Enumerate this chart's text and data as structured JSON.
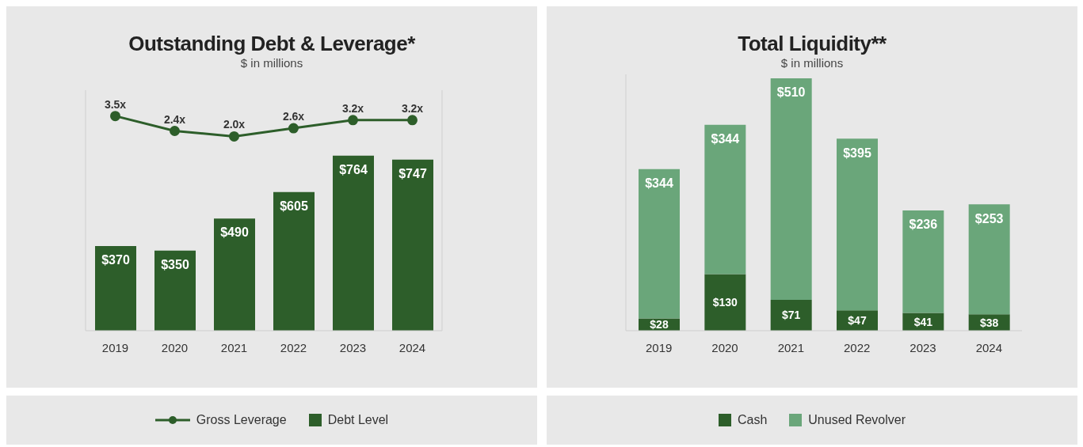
{
  "chart_data": [
    {
      "type": "bar",
      "title": "Outstanding Debt & Leverage*",
      "subtitle": "$ in millions",
      "categories": [
        "2019",
        "2020",
        "2021",
        "2022",
        "2023",
        "2024"
      ],
      "series": [
        {
          "name": "Gross Leverage",
          "type": "line",
          "axis": "y2",
          "color": "#2d5e2a",
          "values": [
            3.5,
            2.4,
            2.0,
            2.6,
            3.2,
            3.2
          ],
          "value_labels": [
            "3.5x",
            "2.4x",
            "2.0x",
            "2.6x",
            "3.2x",
            "3.2x"
          ]
        },
        {
          "name": "Debt Level",
          "color": "#2d5e2a",
          "values": [
            370,
            350,
            490,
            605,
            764,
            747
          ],
          "value_labels": [
            "$370",
            "$350",
            "$490",
            "$605",
            "$764",
            "$747"
          ]
        }
      ],
      "ylim": [
        0,
        1050
      ],
      "y2lim": [
        -12.3,
        5.4
      ],
      "tick_labels": "x",
      "marker": "circle",
      "legend": "bottom",
      "grid": false
    },
    {
      "type": "bar",
      "title": "Total Liquidity**",
      "subtitle": "$ in millions",
      "categories": [
        "2019",
        "2020",
        "2021",
        "2022",
        "2023",
        "2024"
      ],
      "stacked": true,
      "series": [
        {
          "name": "Cash",
          "color": "#2d5e2a",
          "values": [
            28,
            130,
            71,
            47,
            41,
            38
          ],
          "value_labels": [
            "$28",
            "$130",
            "$71",
            "$47",
            "$41",
            "$38"
          ]
        },
        {
          "name": "Unused Revolver",
          "color": "#6aa67a",
          "values": [
            344,
            344,
            510,
            395,
            236,
            253
          ],
          "value_labels": [
            "$344",
            "$344",
            "$510",
            "$395",
            "$236",
            "$253"
          ]
        }
      ],
      "ylim": [
        0,
        590
      ],
      "tick_labels": "x",
      "legend": "bottom",
      "grid": false
    }
  ]
}
